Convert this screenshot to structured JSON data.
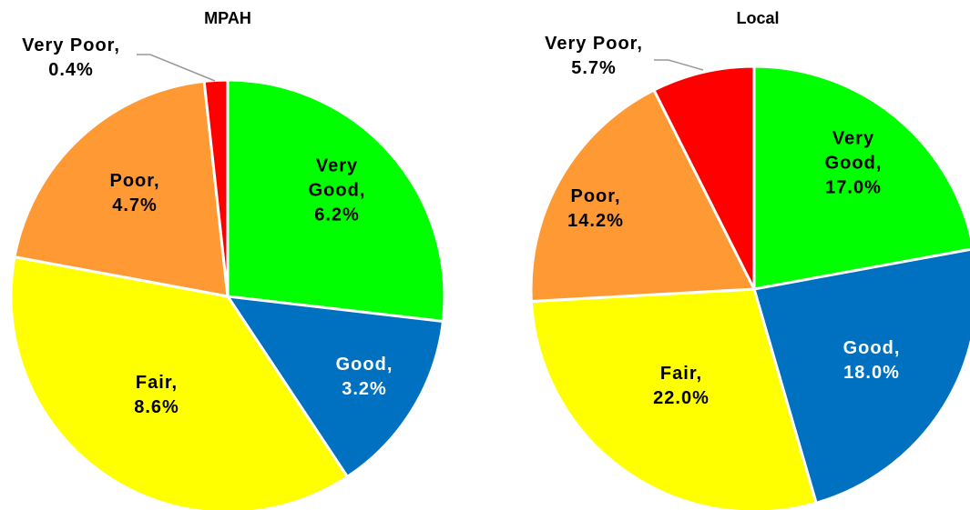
{
  "chart_data": [
    {
      "type": "pie",
      "title": "MPAH",
      "categories": [
        "Very Good,",
        "Good,",
        "Fair,",
        "Poor,",
        "Very Poor,"
      ],
      "values": [
        6.2,
        3.2,
        8.6,
        4.7,
        0.4
      ],
      "value_labels": [
        "6.2%",
        "3.2%",
        "8.6%",
        "4.7%",
        "0.4%"
      ],
      "colors": [
        "#00ff00",
        "#0070c0",
        "#ffff00",
        "#ff9933",
        "#ff0000"
      ]
    },
    {
      "type": "pie",
      "title": "Local",
      "categories": [
        "Very Good,",
        "Good,",
        "Fair,",
        "Poor,",
        "Very Poor,"
      ],
      "values": [
        17.0,
        18.0,
        22.0,
        14.2,
        5.7
      ],
      "value_labels": [
        "17.0%",
        "18.0%",
        "22.0%",
        "14.2%",
        "5.7%"
      ],
      "colors": [
        "#00ff00",
        "#0070c0",
        "#ffff00",
        "#ff9933",
        "#ff0000"
      ]
    }
  ]
}
